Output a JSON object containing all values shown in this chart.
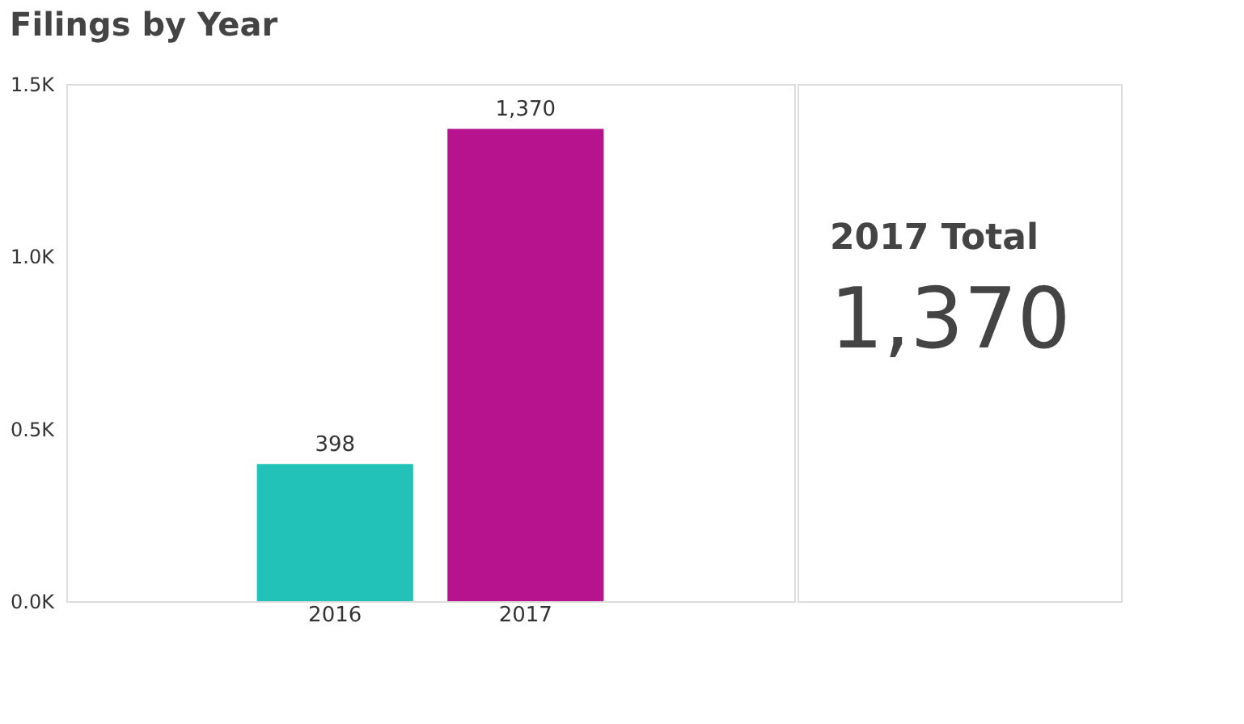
{
  "chart_data": {
    "type": "bar",
    "title": "Filings by Year",
    "categories": [
      "2016",
      "2017"
    ],
    "series": [
      {
        "colors": [
          "#23c2b9",
          "#b8138f"
        ],
        "values": [
          398,
          1370
        ],
        "value_labels": [
          "398",
          "1,370"
        ]
      }
    ],
    "ylim": [
      0,
      1500
    ],
    "yticks": [
      {
        "value": 0,
        "label": "0.0K"
      },
      {
        "value": 500,
        "label": "0.5K"
      },
      {
        "value": 1000,
        "label": "1.0K"
      },
      {
        "value": 1500,
        "label": "1.5K"
      }
    ],
    "grid": false,
    "annotations": [
      "2017  Total",
      "1,370"
    ]
  }
}
